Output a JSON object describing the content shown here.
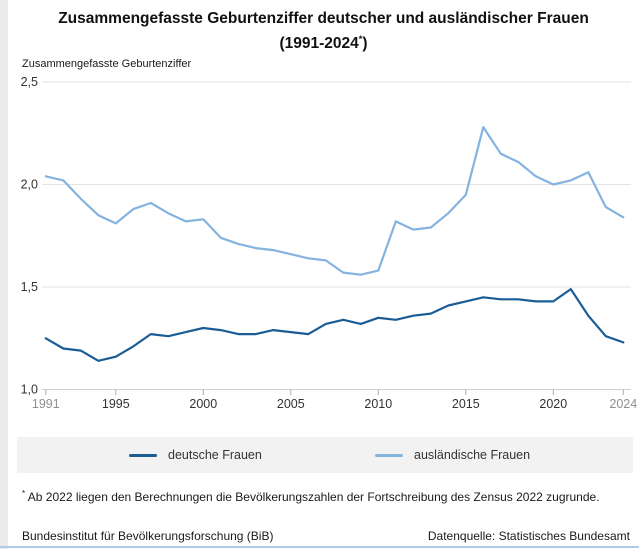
{
  "title": {
    "line1": "Zusammengefasste Geburtenziffer deutscher und ausländischer Frauen",
    "line2_pre": "(1991-2024",
    "line2_sup": "*",
    "line2_post": ")"
  },
  "y_axis_unit": "Zusammengefasste Geburtenziffer",
  "chart_data": {
    "type": "line",
    "title": "Zusammengefasste Geburtenziffer deutscher und ausländischer Frauen (1991-2024*)",
    "xlabel": "",
    "ylabel": "Zusammengefasste Geburtenziffer",
    "xlim": [
      1991,
      2024
    ],
    "ylim": [
      1.0,
      2.5
    ],
    "grid": "horizontal",
    "legend_position": "bottom",
    "x": [
      1991,
      1992,
      1993,
      1994,
      1995,
      1996,
      1997,
      1998,
      1999,
      2000,
      2001,
      2002,
      2003,
      2004,
      2005,
      2006,
      2007,
      2008,
      2009,
      2010,
      2011,
      2012,
      2013,
      2014,
      2015,
      2016,
      2017,
      2018,
      2019,
      2020,
      2021,
      2022,
      2023,
      2024
    ],
    "series": [
      {
        "name": "deutsche Frauen",
        "color": "#1a5d96",
        "values": [
          1.25,
          1.2,
          1.19,
          1.14,
          1.16,
          1.21,
          1.27,
          1.26,
          1.28,
          1.3,
          1.29,
          1.27,
          1.27,
          1.29,
          1.28,
          1.27,
          1.32,
          1.34,
          1.32,
          1.35,
          1.34,
          1.36,
          1.37,
          1.41,
          1.43,
          1.45,
          1.44,
          1.44,
          1.43,
          1.43,
          1.49,
          1.36,
          1.26,
          1.23
        ]
      },
      {
        "name": "ausländische Frauen",
        "color": "#85b3e0",
        "values": [
          2.04,
          2.02,
          1.93,
          1.85,
          1.81,
          1.88,
          1.91,
          1.86,
          1.82,
          1.83,
          1.74,
          1.71,
          1.69,
          1.68,
          1.66,
          1.64,
          1.63,
          1.57,
          1.56,
          1.58,
          1.82,
          1.78,
          1.79,
          1.86,
          1.95,
          2.28,
          2.15,
          2.11,
          2.04,
          2.0,
          2.02,
          2.06,
          1.89,
          1.84
        ]
      }
    ],
    "y_ticks": [
      {
        "value": 2.5,
        "label": "2,5"
      },
      {
        "value": 2.0,
        "label": "2,0"
      },
      {
        "value": 1.5,
        "label": "1,5"
      },
      {
        "value": 1.0,
        "label": "1,0"
      }
    ],
    "x_ticks": [
      {
        "value": 1991,
        "label": "1991",
        "muted": true
      },
      {
        "value": 1995,
        "label": "1995",
        "muted": false
      },
      {
        "value": 2000,
        "label": "2000",
        "muted": false
      },
      {
        "value": 2005,
        "label": "2005",
        "muted": false
      },
      {
        "value": 2010,
        "label": "2010",
        "muted": false
      },
      {
        "value": 2015,
        "label": "2015",
        "muted": false
      },
      {
        "value": 2020,
        "label": "2020",
        "muted": false
      },
      {
        "value": 2024,
        "label": "2024",
        "muted": true
      }
    ]
  },
  "legend": {
    "items": [
      {
        "label": "deutsche Frauen",
        "color": "#1a5d96"
      },
      {
        "label": "ausländische Frauen",
        "color": "#85b3e0"
      }
    ]
  },
  "footnote": {
    "star": "*",
    "text": "Ab 2022 liegen den Berechnungen die Bevölkerungszahlen der Fortschreibung des  Zensus 2022 zugrunde."
  },
  "footer": {
    "left": "Bundesinstitut für Bevölkerungsforschung (BiB)",
    "right": "Datenquelle: Statistisches Bundesamt"
  }
}
